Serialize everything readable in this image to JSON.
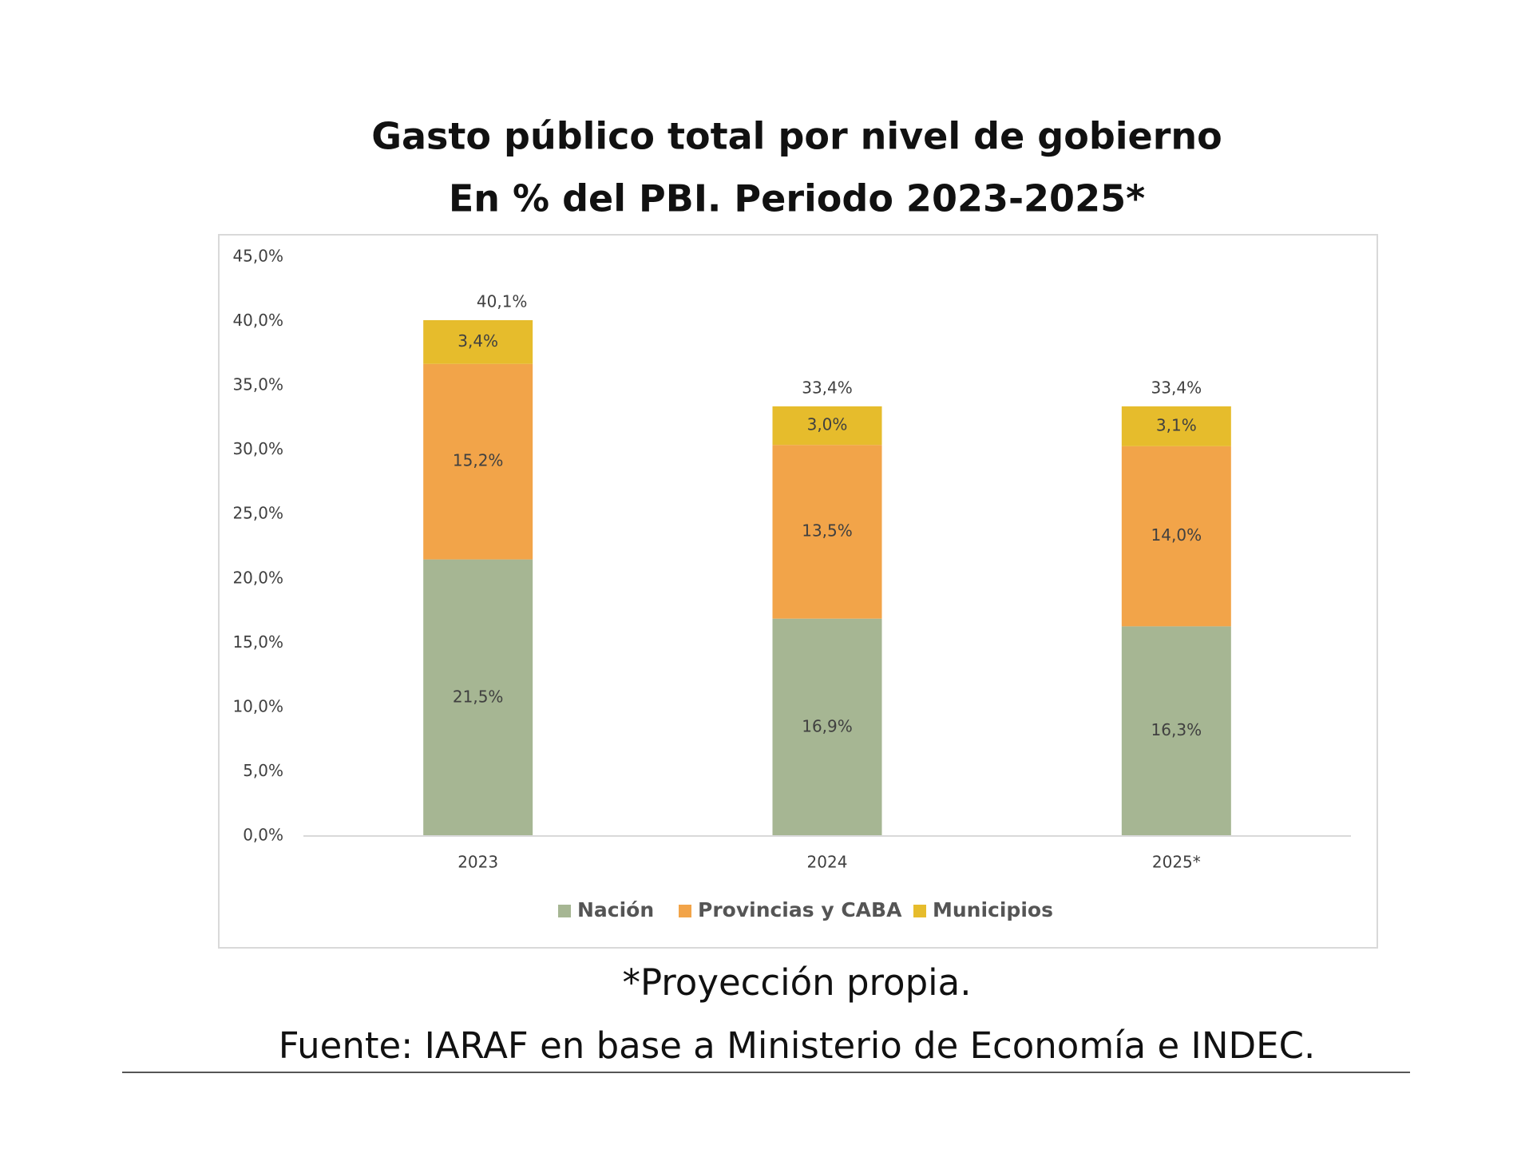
{
  "chart_data": {
    "type": "stacked_bar",
    "title": "Gasto público total por nivel de gobierno",
    "subtitle": "En % del PBI. Periodo 2023-2025*",
    "categories": [
      "2023",
      "2024",
      "2025*"
    ],
    "series": [
      {
        "name": "Nación",
        "color": "#a6b693",
        "values": [
          21.5,
          16.9,
          16.3
        ],
        "value_labels": [
          "21,5%",
          "16,9%",
          "16,3%"
        ]
      },
      {
        "name": "Provincias y CABA",
        "color": "#f2a449",
        "values": [
          15.2,
          13.5,
          14.0
        ],
        "value_labels": [
          "15,2%",
          "13,5%",
          "14,0%"
        ]
      },
      {
        "name": "Municipios",
        "color": "#e6bc2c",
        "values": [
          3.4,
          3.0,
          3.1
        ],
        "value_labels": [
          "3,4%",
          "3,0%",
          "3,1%"
        ]
      }
    ],
    "totals": {
      "values": [
        40.1,
        33.4,
        33.4
      ],
      "value_labels": [
        "40,1%",
        "33,4%",
        "33,4%"
      ]
    },
    "ylim": [
      0,
      45
    ],
    "yticks": [
      {
        "value": 0,
        "label": "0,0%"
      },
      {
        "value": 5,
        "label": "5,0%"
      },
      {
        "value": 10,
        "label": "10,0%"
      },
      {
        "value": 15,
        "label": "15,0%"
      },
      {
        "value": 20,
        "label": "20,0%"
      },
      {
        "value": 25,
        "label": "25,0%"
      },
      {
        "value": 30,
        "label": "30,0%"
      },
      {
        "value": 35,
        "label": "35,0%"
      },
      {
        "value": 40,
        "label": "40,0%"
      },
      {
        "value": 45,
        "label": "45,0%"
      }
    ],
    "grid": false,
    "legend": "bottom",
    "notes": [
      "*Proyección propia.",
      "Fuente: IARAF en base a Ministerio de Economía e INDEC."
    ]
  }
}
